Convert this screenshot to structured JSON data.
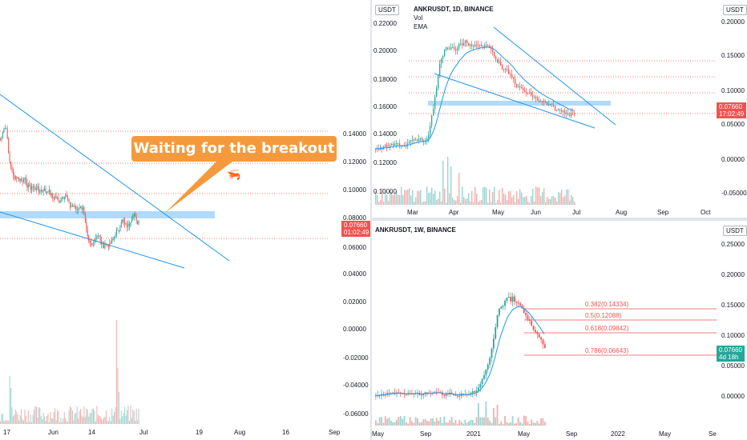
{
  "colors": {
    "up": "#26a69a",
    "down": "#ef5350",
    "ema": "#2196f3",
    "trend": "#2196f3",
    "zone": "#90caf9",
    "callout": "#f59a3c",
    "resistance": "#ef5350",
    "price_tag": "#ef5350",
    "price_tag_bottom": "#26a69a"
  },
  "left_panel": {
    "callout_text": "Waiting for the breakout",
    "callout_icon": "shrimp-icon",
    "price_axis": [
      "0.06000",
      "0.04000",
      "0.02000",
      "0.00000",
      "-0.02000",
      "-0.04000",
      "-0.06000"
    ],
    "price_axis_upper": [
      "0.14000",
      "0.12000",
      "0.10000",
      "0.08000"
    ],
    "price_tag_value": "0.07660",
    "price_tag_time": "01:02:49",
    "time_axis": [
      "17",
      "Jun",
      "14",
      "Jul",
      "19",
      "Aug",
      "16",
      "Sep"
    ]
  },
  "top_right": {
    "legend_title": "ANKRUSDT, 1D, BINANCE",
    "legend_vol": "Vol",
    "legend_ema": "EMA",
    "currency": "USDT",
    "currency_right": "USDT",
    "left_axis": [
      "0.22000",
      "0.20000",
      "0.18000",
      "0.16000",
      "0.14000",
      "0.12000",
      "0.10000"
    ],
    "right_axis": [
      "0.20000",
      "0.15000",
      "0.10000",
      "0.05000",
      "0.00000",
      "-0.05000"
    ],
    "price_tag_value": "0.07660",
    "price_tag_time": "17:02:49",
    "time_axis": [
      "Mar",
      "Apr",
      "May",
      "Jun",
      "Jul",
      "Aug",
      "Sep",
      "Oct"
    ]
  },
  "bottom_right": {
    "legend_title": "ANKRUSDT, 1W, BINANCE",
    "currency": "USDT",
    "right_axis": [
      "0.25000",
      "0.20000",
      "0.15000",
      "0.10000",
      "0.05000",
      "0.00000"
    ],
    "fib_levels": [
      "0.382(0.14334)",
      "0.5(0.12088)",
      "0.618(0.09842)",
      "0.786(0.06643)"
    ],
    "price_tag_value": "0.07660",
    "price_tag_time": "4d 18h",
    "time_axis": [
      "May",
      "Sep",
      "2021",
      "May",
      "Sep",
      "2022",
      "May",
      "Se"
    ]
  }
}
